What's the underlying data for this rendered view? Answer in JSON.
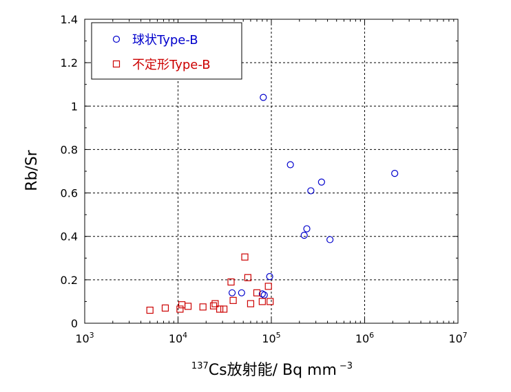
{
  "chart_data": {
    "type": "scatter",
    "xlabel_prefix": "137",
    "xlabel_main": "Cs放射能/ Bq mm",
    "xlabel_exp": "−3",
    "ylabel": "Rb/Sr",
    "xscale": "log",
    "xlim": [
      1000,
      10000000
    ],
    "ylim": [
      0,
      1.4
    ],
    "x_ticks": [
      {
        "base": "10",
        "exp": "3",
        "value": 1000
      },
      {
        "base": "10",
        "exp": "4",
        "value": 10000
      },
      {
        "base": "10",
        "exp": "5",
        "value": 100000
      },
      {
        "base": "10",
        "exp": "6",
        "value": 1000000
      },
      {
        "base": "10",
        "exp": "7",
        "value": 10000000
      }
    ],
    "y_ticks": [
      "0",
      "0.2",
      "0.4",
      "0.6",
      "0.8",
      "1",
      "1.2",
      "1.4"
    ],
    "grid": true,
    "legend_position": "top-left",
    "series": [
      {
        "name": "球状Type-B",
        "marker": "circle",
        "color": "#0000cc",
        "points": [
          [
            38000,
            0.14
          ],
          [
            48000,
            0.14
          ],
          [
            80000,
            0.135
          ],
          [
            84000,
            0.13
          ],
          [
            96000,
            0.215
          ],
          [
            225000,
            0.405
          ],
          [
            240000,
            0.435
          ],
          [
            265000,
            0.61
          ],
          [
            345000,
            0.65
          ],
          [
            425000,
            0.385
          ],
          [
            160000,
            0.73
          ],
          [
            82000,
            1.04
          ],
          [
            2100000,
            0.69
          ]
        ]
      },
      {
        "name": "不定形Type-B",
        "marker": "square",
        "color": "#cc0000",
        "points": [
          [
            5000,
            0.06
          ],
          [
            7300,
            0.07
          ],
          [
            10500,
            0.065
          ],
          [
            11000,
            0.085
          ],
          [
            12800,
            0.078
          ],
          [
            18500,
            0.075
          ],
          [
            24000,
            0.08
          ],
          [
            25000,
            0.09
          ],
          [
            28000,
            0.065
          ],
          [
            31000,
            0.065
          ],
          [
            37000,
            0.19
          ],
          [
            39000,
            0.105
          ],
          [
            52000,
            0.305
          ],
          [
            56000,
            0.21
          ],
          [
            60000,
            0.09
          ],
          [
            70000,
            0.14
          ],
          [
            80000,
            0.1
          ],
          [
            93000,
            0.17
          ],
          [
            97000,
            0.1
          ]
        ]
      }
    ]
  }
}
